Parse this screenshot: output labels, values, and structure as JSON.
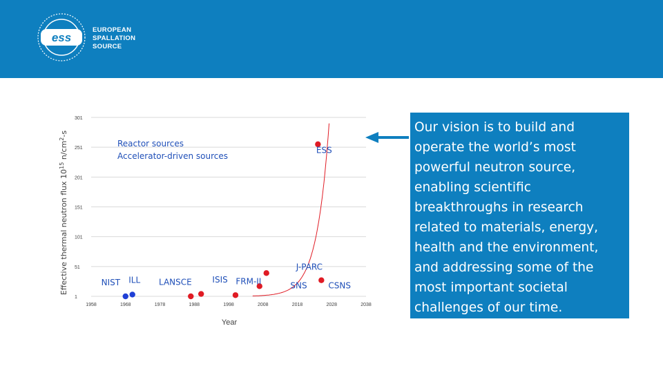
{
  "header": {
    "logo_mark": "ess",
    "org_line1": "EUROPEAN",
    "org_line2": "SPALLATION",
    "org_line3": "SOURCE",
    "color": "#0e7fbf"
  },
  "vision": {
    "text": "Our vision is to build and operate the world’s most powerful neutron source, enabling scientific breakthroughs in research related to materials, energy, health and the environment, and addressing some of the most important societal challenges of our time."
  },
  "arrow": {
    "color": "#0e7fbf",
    "icon": "left-arrow-icon"
  },
  "chart_data": {
    "type": "scatter",
    "ylabel_parts": [
      "Effective thermal neutron flux 10",
      "15",
      " n/cm",
      "2",
      "-s"
    ],
    "xlabel": "Year",
    "xlim": [
      1958,
      2038
    ],
    "ylim": [
      1,
      301
    ],
    "x_ticks": [
      1958,
      1968,
      1978,
      1988,
      1998,
      2008,
      2018,
      2028,
      2038
    ],
    "y_ticks": [
      1,
      51,
      101,
      151,
      201,
      251,
      301
    ],
    "grid": true,
    "legend_position": "top-left",
    "series": [
      {
        "name": "Reactor sources",
        "color": "#1f3fd6",
        "points": [
          {
            "x": 1968,
            "y": 1
          },
          {
            "x": 1970,
            "y": 4
          }
        ]
      },
      {
        "name": "Accelerator-driven sources",
        "color": "#e01b24",
        "points": [
          {
            "x": 1987,
            "y": 1
          },
          {
            "x": 1990,
            "y": 5
          },
          {
            "x": 2000,
            "y": 3
          },
          {
            "x": 2007,
            "y": 18
          },
          {
            "x": 2009,
            "y": 40
          },
          {
            "x": 2025,
            "y": 28
          },
          {
            "x": 2024,
            "y": 256
          }
        ]
      }
    ],
    "curve": {
      "color": "#e01b24"
    },
    "annotations": [
      {
        "text": "NIST",
        "x": 1963.7,
        "y": 24
      },
      {
        "text": "ILL",
        "x": 1970.6,
        "y": 28
      },
      {
        "text": "LANSCE",
        "x": 1982.5,
        "y": 25
      },
      {
        "text": "ISIS",
        "x": 1995.5,
        "y": 29
      },
      {
        "text": "FRM-II",
        "x": 2003.8,
        "y": 26
      },
      {
        "text": "SNS",
        "x": 2018.4,
        "y": 19
      },
      {
        "text": "J-PARC",
        "x": 2021.5,
        "y": 50
      },
      {
        "text": "CSNS",
        "x": 2030.3,
        "y": 19
      },
      {
        "text": "ESS",
        "x": 2025.8,
        "y": 246
      }
    ]
  }
}
